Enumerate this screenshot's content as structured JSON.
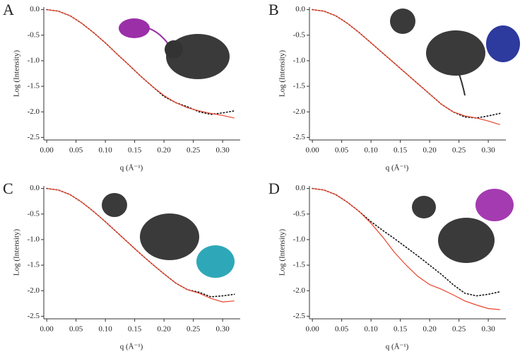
{
  "chart_data": [
    {
      "type": "line",
      "panel_label": "A",
      "x_label": "q (Å⁻¹)",
      "y_label": "Log (Intensity)",
      "x": [
        0,
        0.02,
        0.04,
        0.06,
        0.08,
        0.1,
        0.12,
        0.14,
        0.16,
        0.18,
        0.2,
        0.22,
        0.24,
        0.26,
        0.28,
        0.3,
        0.32
      ],
      "series": [
        {
          "color": "#111111",
          "style": "dotted",
          "values": [
            0,
            -0.03,
            -0.12,
            -0.27,
            -0.45,
            -0.65,
            -0.87,
            -1.08,
            -1.3,
            -1.5,
            -1.7,
            -1.82,
            -1.9,
            -2.0,
            -2.05,
            -2.02,
            -1.98
          ]
        },
        {
          "color": "#e8452c",
          "style": "solid",
          "values": [
            0,
            -0.03,
            -0.12,
            -0.27,
            -0.45,
            -0.65,
            -0.87,
            -1.08,
            -1.3,
            -1.5,
            -1.68,
            -1.82,
            -1.92,
            -1.98,
            -2.03,
            -2.07,
            -2.12
          ]
        }
      ],
      "xlim": [
        -0.005,
        0.33
      ],
      "ylim": [
        -2.55,
        0.05
      ],
      "xticks": [
        {
          "value": 0,
          "label": "0.00"
        },
        {
          "value": 0.05,
          "label": "0.05"
        },
        {
          "value": 0.1,
          "label": "0.10"
        },
        {
          "value": 0.15,
          "label": "0.15"
        },
        {
          "value": 0.2,
          "label": "0.20"
        },
        {
          "value": 0.25,
          "label": "0.25"
        },
        {
          "value": 0.3,
          "label": "0.30"
        }
      ],
      "yticks": [
        {
          "value": 0,
          "label": "0.0"
        },
        -0.5,
        {
          "value": -1,
          "label": "-1.0"
        },
        -1.5,
        {
          "value": -2,
          "label": "-2.0"
        },
        -2.5
      ]
    },
    {
      "type": "line",
      "panel_label": "B",
      "x_label": "q (Å⁻¹)",
      "y_label": "Log (Intensity)",
      "x": [
        0,
        0.02,
        0.04,
        0.06,
        0.08,
        0.1,
        0.12,
        0.14,
        0.16,
        0.18,
        0.2,
        0.22,
        0.24,
        0.26,
        0.28,
        0.3,
        0.32
      ],
      "series": [
        {
          "color": "#111111",
          "style": "dotted",
          "values": [
            0,
            -0.03,
            -0.12,
            -0.27,
            -0.45,
            -0.65,
            -0.85,
            -1.05,
            -1.25,
            -1.45,
            -1.65,
            -1.85,
            -2.0,
            -2.1,
            -2.12,
            -2.08,
            -2.03
          ]
        },
        {
          "color": "#e8452c",
          "style": "solid",
          "values": [
            0,
            -0.03,
            -0.12,
            -0.27,
            -0.45,
            -0.65,
            -0.85,
            -1.05,
            -1.25,
            -1.45,
            -1.65,
            -1.85,
            -2.0,
            -2.08,
            -2.12,
            -2.18,
            -2.25
          ]
        }
      ],
      "xlim": [
        -0.005,
        0.33
      ],
      "ylim": [
        -2.55,
        0.05
      ],
      "xticks": [
        {
          "value": 0,
          "label": "0.00"
        },
        {
          "value": 0.05,
          "label": "0.05"
        },
        {
          "value": 0.1,
          "label": "0.10"
        },
        {
          "value": 0.15,
          "label": "0.15"
        },
        {
          "value": 0.2,
          "label": "0.20"
        },
        {
          "value": 0.25,
          "label": "0.25"
        },
        {
          "value": 0.3,
          "label": "0.30"
        }
      ],
      "yticks": [
        {
          "value": 0,
          "label": "0.0"
        },
        -0.5,
        {
          "value": -1,
          "label": "-1.0"
        },
        -1.5,
        {
          "value": -2,
          "label": "-2.0"
        },
        -2.5
      ]
    },
    {
      "type": "line",
      "panel_label": "C",
      "x_label": "q (Å⁻¹)",
      "y_label": "Log (Intensity)",
      "x": [
        0,
        0.02,
        0.04,
        0.06,
        0.08,
        0.1,
        0.12,
        0.14,
        0.16,
        0.18,
        0.2,
        0.22,
        0.24,
        0.26,
        0.28,
        0.3,
        0.32
      ],
      "series": [
        {
          "color": "#111111",
          "style": "dotted",
          "values": [
            0,
            -0.03,
            -0.12,
            -0.27,
            -0.45,
            -0.65,
            -0.86,
            -1.07,
            -1.28,
            -1.48,
            -1.67,
            -1.85,
            -1.98,
            -2.03,
            -2.12,
            -2.1,
            -2.07
          ]
        },
        {
          "color": "#e8452c",
          "style": "solid",
          "values": [
            0,
            -0.03,
            -0.12,
            -0.27,
            -0.45,
            -0.65,
            -0.86,
            -1.07,
            -1.28,
            -1.48,
            -1.67,
            -1.85,
            -1.98,
            -2.05,
            -2.15,
            -2.22,
            -2.2
          ]
        }
      ],
      "xlim": [
        -0.005,
        0.33
      ],
      "ylim": [
        -2.55,
        0.05
      ],
      "xticks": [
        {
          "value": 0,
          "label": "0.00"
        },
        {
          "value": 0.05,
          "label": "0.05"
        },
        {
          "value": 0.1,
          "label": "0.10"
        },
        {
          "value": 0.15,
          "label": "0.15"
        },
        {
          "value": 0.2,
          "label": "0.20"
        },
        {
          "value": 0.25,
          "label": "0.25"
        },
        {
          "value": 0.3,
          "label": "0.30"
        }
      ],
      "yticks": [
        {
          "value": 0,
          "label": "0.0"
        },
        -0.5,
        {
          "value": -1,
          "label": "-1.0"
        },
        -1.5,
        {
          "value": -2,
          "label": "-2.0"
        },
        -2.5
      ]
    },
    {
      "type": "line",
      "panel_label": "D",
      "x_label": "q (Å⁻¹)",
      "y_label": "Log (Intensity)",
      "x": [
        0,
        0.02,
        0.04,
        0.06,
        0.08,
        0.1,
        0.12,
        0.14,
        0.16,
        0.18,
        0.2,
        0.22,
        0.24,
        0.26,
        0.28,
        0.3,
        0.32
      ],
      "series": [
        {
          "color": "#111111",
          "style": "dotted",
          "values": [
            0,
            -0.03,
            -0.12,
            -0.27,
            -0.45,
            -0.65,
            -0.82,
            -0.98,
            -1.15,
            -1.32,
            -1.5,
            -1.68,
            -1.88,
            -2.05,
            -2.1,
            -2.07,
            -2.02
          ]
        },
        {
          "color": "#e8452c",
          "style": "solid",
          "values": [
            0,
            -0.03,
            -0.12,
            -0.27,
            -0.45,
            -0.68,
            -0.95,
            -1.25,
            -1.5,
            -1.72,
            -1.88,
            -1.97,
            -2.08,
            -2.2,
            -2.28,
            -2.35,
            -2.37
          ]
        }
      ],
      "xlim": [
        -0.005,
        0.33
      ],
      "ylim": [
        -2.55,
        0.05
      ],
      "xticks": [
        {
          "value": 0,
          "label": "0.00"
        },
        {
          "value": 0.05,
          "label": "0.05"
        },
        {
          "value": 0.1,
          "label": "0.10"
        },
        {
          "value": 0.15,
          "label": "0.15"
        },
        {
          "value": 0.2,
          "label": "0.20"
        },
        {
          "value": 0.25,
          "label": "0.25"
        },
        {
          "value": 0.3,
          "label": "0.30"
        }
      ],
      "yticks": [
        {
          "value": 0,
          "label": "0.0"
        },
        -0.5,
        {
          "value": -1,
          "label": "-1.0"
        },
        -1.5,
        {
          "value": -2,
          "label": "-2.0"
        },
        -2.5
      ]
    }
  ]
}
